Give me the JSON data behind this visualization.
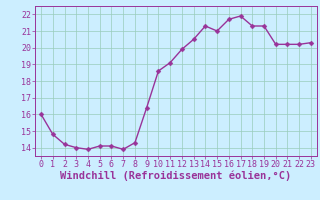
{
  "x": [
    0,
    1,
    2,
    3,
    4,
    5,
    6,
    7,
    8,
    9,
    10,
    11,
    12,
    13,
    14,
    15,
    16,
    17,
    18,
    19,
    20,
    21,
    22,
    23
  ],
  "y": [
    16.0,
    14.8,
    14.2,
    14.0,
    13.9,
    14.1,
    14.1,
    13.9,
    14.3,
    16.4,
    18.6,
    19.1,
    19.9,
    20.5,
    21.3,
    21.0,
    21.7,
    21.9,
    21.3,
    21.3,
    20.2,
    20.2,
    20.2,
    20.3
  ],
  "line_color": "#993399",
  "marker_color": "#993399",
  "bg_color": "#cceeff",
  "grid_color": "#99ccbb",
  "xlabel": "Windchill (Refroidissement éolien,°C)",
  "xlabel_color": "#993399",
  "xlim": [
    -0.5,
    23.5
  ],
  "ylim": [
    13.5,
    22.5
  ],
  "yticks": [
    14,
    15,
    16,
    17,
    18,
    19,
    20,
    21,
    22
  ],
  "xtick_labels": [
    "0",
    "1",
    "2",
    "3",
    "4",
    "5",
    "6",
    "7",
    "8",
    "9",
    "10",
    "11",
    "12",
    "13",
    "14",
    "15",
    "16",
    "17",
    "18",
    "19",
    "20",
    "21",
    "22",
    "23"
  ],
  "tick_color": "#993399",
  "tick_fontsize": 6,
  "xlabel_fontsize": 7.5,
  "line_width": 1.0,
  "marker_size": 2.5
}
